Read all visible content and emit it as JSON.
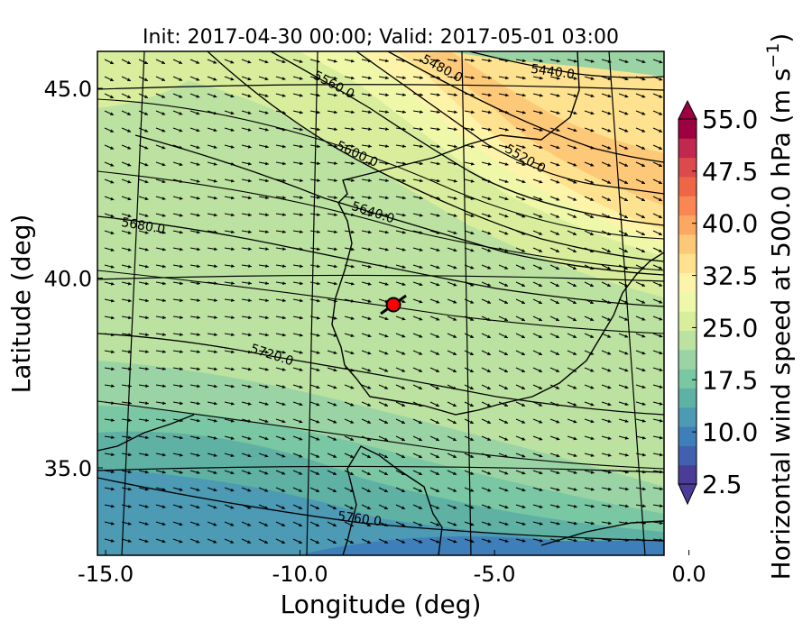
{
  "title": "Init: 2017-04-30 00:00; Valid: 2017-05-01 03:00",
  "x_axis": {
    "label": "Longitude (deg)",
    "ticks": [
      {
        "v": -15.0,
        "label": "-15.0"
      },
      {
        "v": -10.0,
        "label": "-10.0"
      },
      {
        "v": -5.0,
        "label": "-5.0"
      },
      {
        "v": 0.0,
        "label": "0.0"
      }
    ]
  },
  "y_axis": {
    "label": "Latitude (deg)",
    "ticks": [
      {
        "v": 35.0,
        "label": "35.0"
      },
      {
        "v": 40.0,
        "label": "40.0"
      },
      {
        "v": 45.0,
        "label": "45.0"
      }
    ]
  },
  "colorbar": {
    "label": "Horizontal wind speed at 500.0 hPa (m s",
    "label_superscript": "−1",
    "label_close": ")",
    "tick_labels": [
      "2.5",
      "10.0",
      "17.5",
      "25.0",
      "32.5",
      "40.0",
      "47.5",
      "55.0"
    ],
    "tick_values": [
      2.5,
      10.0,
      17.5,
      25.0,
      32.5,
      40.0,
      47.5,
      55.0
    ],
    "colors": [
      "#4b3d97",
      "#4161b0",
      "#3f7fb9",
      "#4c9ab4",
      "#5fb1a4",
      "#7ac7a3",
      "#9bd4a4",
      "#bbe2a0",
      "#d8ee9c",
      "#eff8a9",
      "#fdf3a9",
      "#fee28f",
      "#fdc877",
      "#fca861",
      "#f98653",
      "#ef6645",
      "#dc4a4c",
      "#c2284f",
      "#9e0142"
    ]
  },
  "contours": [
    {
      "label": "5440.0"
    },
    {
      "label": "5480.0"
    },
    {
      "label": "5520.0"
    },
    {
      "label": "5560.0"
    },
    {
      "label": "5600.0"
    },
    {
      "label": "5640.0"
    },
    {
      "label": "5680.0"
    },
    {
      "label": "5720.0"
    },
    {
      "label": "5760.0"
    }
  ],
  "marker": {
    "lon": -7.6,
    "lat": 39.3,
    "color": "#ff0000"
  },
  "colors": {
    "frame": "#000000",
    "coast": "#000000",
    "vector": "#000000"
  }
}
